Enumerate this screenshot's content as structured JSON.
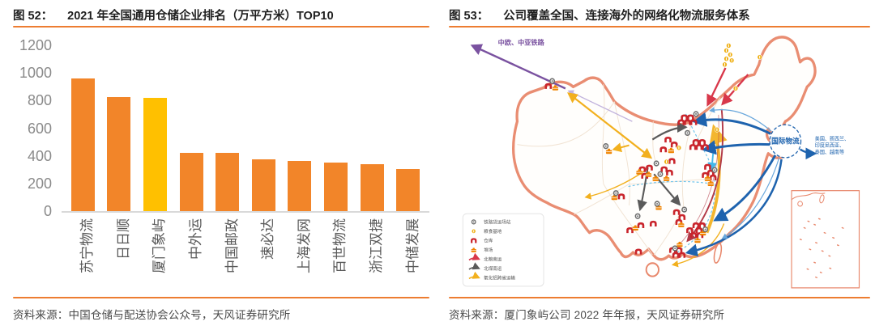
{
  "accent_color": "#ED7D31",
  "figures": [
    {
      "label": "图 52：",
      "title": "2021 年全国通用仓储企业排名（万平方米）TOP10",
      "source": "资料来源：中国仓储与配送协会公众号，天风证券研究所",
      "chart_data": {
        "type": "bar",
        "title": "2021 年全国通用仓储企业排名（万平方米）TOP10",
        "categories": [
          "苏宁物流",
          "日日顺",
          "厦门象屿",
          "中外运",
          "中国邮政",
          "速必达",
          "上海发网",
          "百世物流",
          "浙江双捷",
          "中储发展"
        ],
        "values": [
          963,
          827,
          820,
          424,
          420,
          372,
          363,
          350,
          341,
          305
        ],
        "unit": "万平方米",
        "ylim": [
          0,
          1200
        ],
        "ytick_step": 200,
        "bar_color": "#F28529",
        "highlight_index": 2,
        "highlight_color": "#FFC000",
        "grid": false,
        "legend_position": "none"
      }
    },
    {
      "label": "图 53：",
      "title": "公司覆盖全国、连接海外的网络化物流服务体系",
      "source": "资料来源：厦门象屿公司 2022 年年报，天风证券研究所",
      "map": {
        "rail_corridor_label": "中欧、中亚铁路",
        "intl_hub_label": "国际物流",
        "intl_destinations": [
          "美国、新西兰、",
          "印度尼西亚、",
          "泰国、越南等"
        ],
        "legend": [
          {
            "icon": "station-icon",
            "label": "铁路货运场站"
          },
          {
            "icon": "grain-icon",
            "label": "粮食基地"
          },
          {
            "icon": "warehouse-icon",
            "label": "仓库"
          },
          {
            "icon": "yard-icon",
            "label": "堆场"
          },
          {
            "icon": "red-route-icon",
            "label": "北粮南运"
          },
          {
            "icon": "dark-route-icon",
            "label": "北煤南运"
          },
          {
            "icon": "yellow-route-icon",
            "label": "氧化铝跨省运输"
          }
        ],
        "markers": {
          "stations": [
            [
              133,
              63
            ],
            [
              202,
              142
            ],
            [
              215,
              199
            ],
            [
              267,
              163
            ],
            [
              272,
              176
            ],
            [
              307,
              126
            ],
            [
              342,
              171
            ],
            [
              303,
              219
            ],
            [
              243,
              227
            ],
            [
              268,
              212
            ],
            [
              330,
              243
            ],
            [
              291,
              266
            ],
            [
              318,
              103
            ]
          ],
          "grains": [
            [
              360,
              20
            ],
            [
              357,
              26
            ],
            [
              362,
              31
            ],
            [
              357,
              36
            ],
            [
              364,
              38
            ],
            [
              355,
              43
            ],
            [
              369,
              72
            ],
            [
              400,
              34
            ],
            [
              345,
              122
            ],
            [
              296,
              144
            ],
            [
              280,
              161
            ]
          ],
          "warehouses": [
            [
              303,
              107
            ],
            [
              311,
              107
            ],
            [
              307,
              113
            ],
            [
              315,
              113
            ],
            [
              299,
              113
            ],
            [
              318,
              137
            ],
            [
              326,
              137
            ],
            [
              322,
              143
            ],
            [
              330,
              143
            ],
            [
              314,
              143
            ],
            [
              282,
              134
            ],
            [
              290,
              140
            ],
            [
              276,
              146
            ],
            [
              249,
              170
            ],
            [
              258,
              168
            ],
            [
              277,
              170
            ],
            [
              284,
              174
            ],
            [
              287,
              160
            ],
            [
              252,
              178
            ],
            [
              333,
              167
            ],
            [
              337,
              174
            ],
            [
              330,
              177
            ],
            [
              340,
              180
            ],
            [
              293,
              222
            ],
            [
              300,
              228
            ],
            [
              296,
              234
            ],
            [
              247,
              238
            ],
            [
              233,
              244
            ],
            [
              318,
              238
            ],
            [
              326,
              238
            ],
            [
              322,
              244
            ],
            [
              315,
              250
            ],
            [
              323,
              250
            ],
            [
              310,
              244
            ],
            [
              288,
              268
            ],
            [
              296,
              268
            ],
            [
              292,
              274
            ],
            [
              300,
              274
            ],
            [
              128,
              69
            ],
            [
              222,
              203
            ],
            [
              244,
              270
            ],
            [
              263,
              236
            ]
          ],
          "yards": [
            [
              137,
              71
            ],
            [
              206,
              148
            ],
            [
              213,
              204
            ],
            [
              257,
              176
            ],
            [
              266,
              181
            ],
            [
              280,
              181
            ],
            [
              245,
              173
            ],
            [
              286,
              147
            ],
            [
              333,
              181
            ],
            [
              337,
              187
            ],
            [
              299,
              237
            ],
            [
              240,
              241
            ],
            [
              327,
              247
            ],
            [
              320,
              256
            ],
            [
              297,
              261
            ],
            [
              270,
              216
            ]
          ]
        }
      }
    }
  ]
}
